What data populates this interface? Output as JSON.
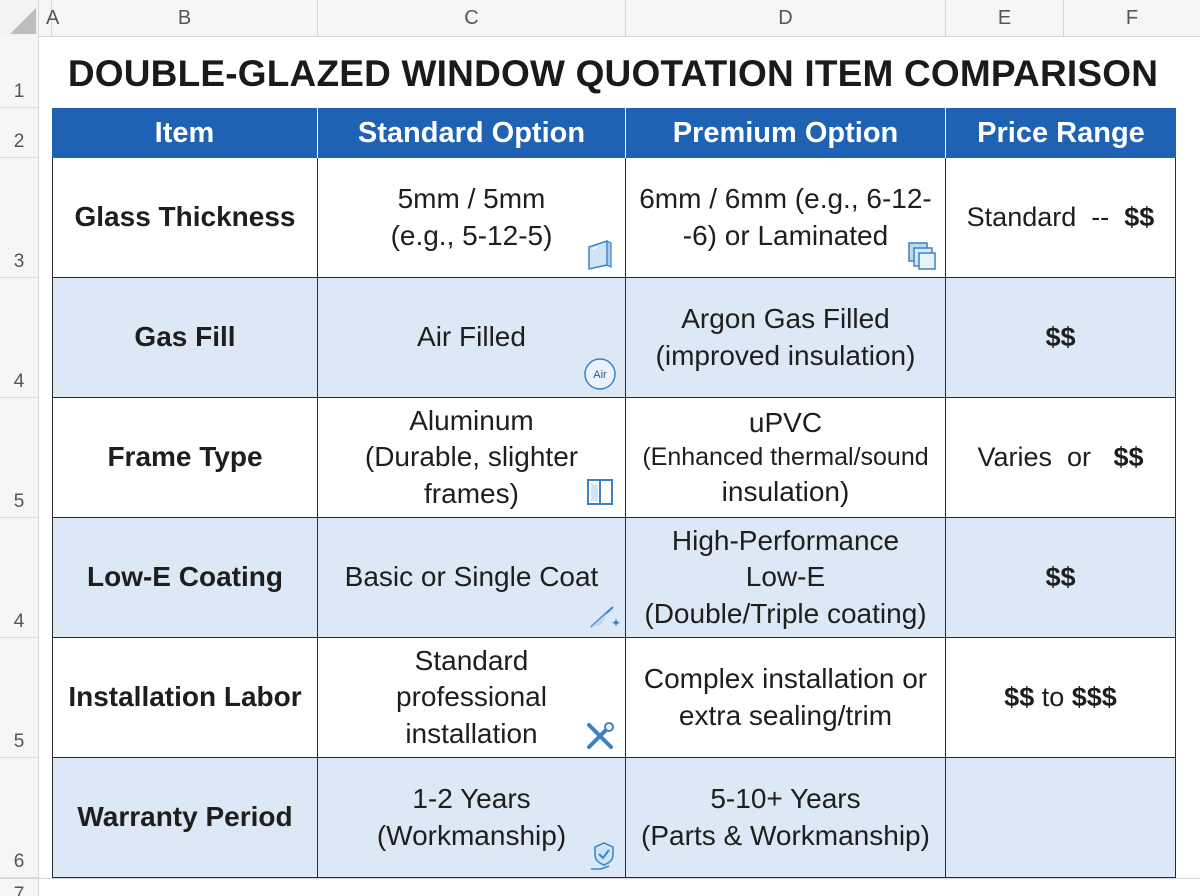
{
  "columns": [
    "A",
    "B",
    "C",
    "D",
    "E",
    "F"
  ],
  "row_numbers": [
    "1",
    "2",
    "3",
    "4",
    "5",
    "4",
    "5",
    "6",
    "7"
  ],
  "title": "DOUBLE-GLAZED WINDOW QUOTATION ITEM COMPARISON",
  "headers": {
    "item": "Item",
    "standard": "Standard Option",
    "premium": "Premium Option",
    "price": "Price Range"
  },
  "rows": [
    {
      "item": "Glass Thickness",
      "standard": "5mm / 5mm\n(e.g., 5-12-5)",
      "premium": "6mm / 6mm (e.g., 6-12-\n-6) or Laminated",
      "price_text": "Standard  --",
      "price_amount": "$$",
      "standard_icon": "glass-pane-icon",
      "premium_icon": "laminated-glass-icon"
    },
    {
      "item": "Gas Fill",
      "standard": "Air Filled",
      "premium": "Argon Gas Filled\n(improved insulation)",
      "price_text": "",
      "price_amount": "$$",
      "standard_icon": "air-bubble-icon",
      "standard_icon_label": "Air"
    },
    {
      "item": "Frame Type",
      "standard": "Aluminum\n(Durable, slighter\nframes)",
      "premium_line1": "uPVC",
      "premium_line2": "(Enhanced thermal/sound",
      "premium_line3": "insulation)",
      "price_text": "Varies  or",
      "price_amount": "$$",
      "standard_icon": "window-frame-icon"
    },
    {
      "item": "Low-E Coating",
      "standard": "Basic or Single Coat",
      "premium": "High-Performance\nLow-E\n(Double/Triple coating)",
      "price_text": "",
      "price_amount": "$$",
      "standard_icon": "sparkle-coating-icon"
    },
    {
      "item": "Installation Labor",
      "standard": "Standard\nprofessional\ninstallation",
      "premium": "Complex installation or\nextra sealing/trim",
      "price_a": "$$",
      "price_mid": " to ",
      "price_b": "$$$",
      "standard_icon": "tools-icon"
    },
    {
      "item": "Warranty Period",
      "standard": "1-2 Years\n(Workmanship)",
      "premium": "5-10+ Years\n(Parts & Workmanship)",
      "price_text": "",
      "price_amount": "",
      "standard_icon": "warranty-hand-shield-icon"
    }
  ],
  "colors": {
    "header_blue": "#1f62b4",
    "row_blue": "#dce8f5",
    "icon_blue": "#3b82c4"
  }
}
